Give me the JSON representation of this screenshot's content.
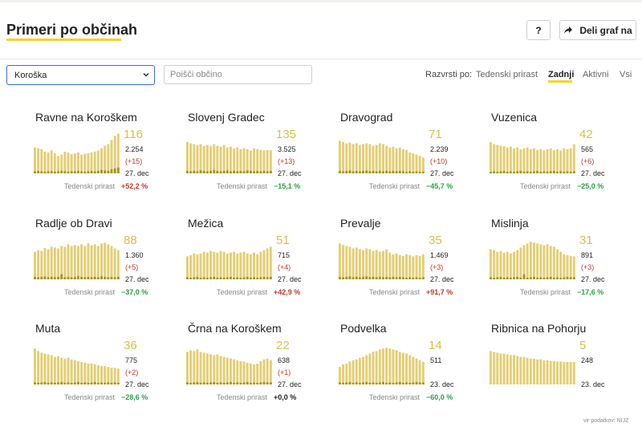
{
  "header": {
    "title": "Primeri po občinah",
    "help_label": "?",
    "share_label": "Deli graf na"
  },
  "filters": {
    "region_selected": "Koroška",
    "search_placeholder": "Poišči občino",
    "sort_label": "Razvrsti po:",
    "sort_options": [
      "Tedenski prirast",
      "Zadnji",
      "Aktivni",
      "Vsi"
    ],
    "sort_active": "Zadnji"
  },
  "colors": {
    "bar": "#e3cf75",
    "bar_dark": "#a89324",
    "accent_yellow": "#f5d327",
    "big_number": "#d8bf4a",
    "up": "#c0392b",
    "down": "#27a04a"
  },
  "growth_label": "Tedenski prirast",
  "municipalities": [
    {
      "name": "Ravne na Koroškem",
      "last": "116",
      "total": "2.254",
      "delta": "(+15)",
      "date": "27. dec",
      "growth": "+52,2 %",
      "trend": "up",
      "bars": [
        0.62,
        0.6,
        0.58,
        0.52,
        0.5,
        0.55,
        0.48,
        0.42,
        0.45,
        0.52,
        0.5,
        0.46,
        0.48,
        0.5,
        0.45,
        0.47,
        0.48,
        0.5,
        0.52,
        0.55,
        0.6,
        0.66,
        0.7,
        0.8,
        0.9,
        0.95
      ],
      "dark": [
        0.05,
        0.06,
        0.05,
        0.04,
        0.05,
        0.05,
        0.04,
        0.05,
        0.06,
        0.05,
        0.04,
        0.05,
        0.05,
        0.06,
        0.05,
        0.04,
        0.05,
        0.06,
        0.05,
        0.06,
        0.08,
        0.07,
        0.06,
        0.1,
        0.12,
        0.14
      ]
    },
    {
      "name": "Slovenj Gradec",
      "last": "135",
      "total": "3.525",
      "delta": "(+13)",
      "date": "27. dec",
      "growth": "−15,1 %",
      "trend": "down",
      "bars": [
        0.75,
        0.72,
        0.7,
        0.68,
        0.7,
        0.66,
        0.68,
        0.65,
        0.7,
        0.66,
        0.64,
        0.68,
        0.62,
        0.64,
        0.6,
        0.62,
        0.58,
        0.6,
        0.58,
        0.55,
        0.6,
        0.58,
        0.56,
        0.55,
        0.56,
        0.55
      ],
      "dark": [
        0.06,
        0.05,
        0.06,
        0.05,
        0.07,
        0.06,
        0.05,
        0.06,
        0.08,
        0.06,
        0.05,
        0.06,
        0.07,
        0.05,
        0.06,
        0.05,
        0.06,
        0.05,
        0.07,
        0.06,
        0.05,
        0.06,
        0.05,
        0.06,
        0.05,
        0.06
      ]
    },
    {
      "name": "Dravograd",
      "last": "71",
      "total": "2.239",
      "delta": "(+10)",
      "date": "27. dec",
      "growth": "−45,7 %",
      "trend": "down",
      "bars": [
        0.78,
        0.75,
        0.72,
        0.74,
        0.7,
        0.72,
        0.68,
        0.7,
        0.72,
        0.7,
        0.66,
        0.68,
        0.72,
        0.7,
        0.66,
        0.62,
        0.64,
        0.6,
        0.62,
        0.58,
        0.56,
        0.5,
        0.48,
        0.45,
        0.42,
        0.38
      ],
      "dark": [
        0.06,
        0.05,
        0.06,
        0.07,
        0.05,
        0.06,
        0.05,
        0.06,
        0.07,
        0.05,
        0.06,
        0.05,
        0.06,
        0.05,
        0.06,
        0.05,
        0.06,
        0.05,
        0.06,
        0.05,
        0.04,
        0.05,
        0.04,
        0.05,
        0.04,
        0.04
      ]
    },
    {
      "name": "Vuzenica",
      "last": "42",
      "total": "565",
      "delta": "(+6)",
      "date": "27. dec",
      "growth": "−25,0 %",
      "trend": "down",
      "bars": [
        0.75,
        0.7,
        0.68,
        0.66,
        0.65,
        0.62,
        0.64,
        0.6,
        0.62,
        0.58,
        0.6,
        0.62,
        0.58,
        0.6,
        0.56,
        0.58,
        0.55,
        0.58,
        0.6,
        0.56,
        0.58,
        0.55,
        0.6,
        0.58,
        0.6,
        0.7
      ],
      "dark": [
        0.04,
        0.05,
        0.04,
        0.05,
        0.06,
        0.04,
        0.05,
        0.04,
        0.05,
        0.06,
        0.04,
        0.05,
        0.04,
        0.05,
        0.06,
        0.04,
        0.05,
        0.04,
        0.05,
        0.06,
        0.04,
        0.05,
        0.04,
        0.05,
        0.04,
        0.05
      ]
    },
    {
      "name": "Radlje ob Dravi",
      "last": "88",
      "total": "1.360",
      "delta": "(+5)",
      "date": "27. dec",
      "growth": "−37,0 %",
      "trend": "down",
      "bars": [
        0.66,
        0.7,
        0.68,
        0.75,
        0.72,
        0.78,
        0.76,
        0.74,
        0.8,
        0.78,
        0.84,
        0.8,
        0.82,
        0.8,
        0.84,
        0.8,
        0.86,
        0.82,
        0.84,
        0.8,
        0.86,
        0.88,
        0.84,
        0.8,
        0.74,
        0.7
      ],
      "dark": [
        0.06,
        0.05,
        0.06,
        0.07,
        0.05,
        0.06,
        0.05,
        0.06,
        0.12,
        0.05,
        0.06,
        0.05,
        0.06,
        0.08,
        0.06,
        0.05,
        0.06,
        0.05,
        0.06,
        0.05,
        0.07,
        0.06,
        0.05,
        0.06,
        0.05,
        0.06
      ]
    },
    {
      "name": "Mežica",
      "last": "51",
      "total": "715",
      "delta": "(+4)",
      "date": "27. dec",
      "growth": "+42,9 %",
      "trend": "up",
      "bars": [
        0.55,
        0.58,
        0.62,
        0.6,
        0.62,
        0.66,
        0.64,
        0.68,
        0.66,
        0.64,
        0.68,
        0.66,
        0.62,
        0.64,
        0.66,
        0.62,
        0.64,
        0.66,
        0.62,
        0.6,
        0.64,
        0.6,
        0.66,
        0.7,
        0.74,
        0.78
      ],
      "dark": [
        0.05,
        0.04,
        0.05,
        0.06,
        0.04,
        0.05,
        0.04,
        0.05,
        0.06,
        0.04,
        0.05,
        0.04,
        0.05,
        0.06,
        0.04,
        0.05,
        0.04,
        0.05,
        0.06,
        0.04,
        0.05,
        0.04,
        0.05,
        0.06,
        0.05,
        0.06
      ]
    },
    {
      "name": "Prevalje",
      "last": "35",
      "total": "1.469",
      "delta": "(+3)",
      "date": "27. dec",
      "growth": "+91,7 %",
      "trend": "up",
      "bars": [
        0.86,
        0.82,
        0.8,
        0.78,
        0.74,
        0.76,
        0.72,
        0.7,
        0.74,
        0.72,
        0.68,
        0.7,
        0.66,
        0.68,
        0.72,
        0.64,
        0.6,
        0.62,
        0.58,
        0.56,
        0.6,
        0.58,
        0.55,
        0.58,
        0.56,
        0.6
      ],
      "dark": [
        0.06,
        0.05,
        0.06,
        0.07,
        0.05,
        0.06,
        0.05,
        0.06,
        0.07,
        0.05,
        0.06,
        0.05,
        0.06,
        0.05,
        0.06,
        0.05,
        0.06,
        0.05,
        0.06,
        0.05,
        0.04,
        0.05,
        0.04,
        0.05,
        0.04,
        0.05
      ]
    },
    {
      "name": "Mislinja",
      "last": "31",
      "total": "891",
      "delta": "(+3)",
      "date": "27. dec",
      "growth": "−17,6 %",
      "trend": "down",
      "bars": [
        0.72,
        0.7,
        0.66,
        0.68,
        0.64,
        0.66,
        0.62,
        0.66,
        0.7,
        0.76,
        0.82,
        0.86,
        0.9,
        0.88,
        0.86,
        0.84,
        0.82,
        0.84,
        0.8,
        0.78,
        0.72,
        0.66,
        0.6,
        0.58,
        0.56,
        0.55
      ],
      "dark": [
        0.05,
        0.04,
        0.05,
        0.06,
        0.04,
        0.05,
        0.04,
        0.05,
        0.06,
        0.04,
        0.12,
        0.04,
        0.05,
        0.06,
        0.04,
        0.05,
        0.04,
        0.05,
        0.06,
        0.04,
        0.05,
        0.04,
        0.05,
        0.06,
        0.05,
        0.05
      ]
    },
    {
      "name": "Muta",
      "last": "36",
      "total": "775",
      "delta": "(+2)",
      "date": "27. dec",
      "growth": "−28,6 %",
      "trend": "down",
      "bars": [
        0.86,
        0.8,
        0.76,
        0.74,
        0.72,
        0.7,
        0.66,
        0.68,
        0.64,
        0.62,
        0.64,
        0.6,
        0.58,
        0.56,
        0.54,
        0.52,
        0.5,
        0.5,
        0.48,
        0.46,
        0.44,
        0.44,
        0.42,
        0.4,
        0.4,
        0.38
      ],
      "dark": [
        0.05,
        0.04,
        0.05,
        0.06,
        0.04,
        0.05,
        0.04,
        0.05,
        0.06,
        0.04,
        0.05,
        0.04,
        0.05,
        0.06,
        0.04,
        0.05,
        0.04,
        0.05,
        0.06,
        0.04,
        0.05,
        0.04,
        0.05,
        0.04,
        0.05,
        0.04
      ]
    },
    {
      "name": "Črna na Koroškem",
      "last": "22",
      "total": "638",
      "delta": "(+1)",
      "date": "27. dec",
      "growth": "+0,0 %",
      "trend": "zero",
      "bars": [
        0.78,
        0.82,
        0.8,
        0.84,
        0.78,
        0.76,
        0.74,
        0.72,
        0.7,
        0.72,
        0.68,
        0.66,
        0.64,
        0.62,
        0.6,
        0.58,
        0.56,
        0.55,
        0.52,
        0.5,
        0.48,
        0.5,
        0.56,
        0.6,
        0.62,
        0.58
      ],
      "dark": [
        0.05,
        0.04,
        0.05,
        0.06,
        0.04,
        0.05,
        0.04,
        0.05,
        0.06,
        0.04,
        0.05,
        0.04,
        0.05,
        0.06,
        0.04,
        0.05,
        0.04,
        0.05,
        0.06,
        0.04,
        0.05,
        0.04,
        0.05,
        0.06,
        0.05,
        0.05
      ]
    },
    {
      "name": "Podvelka",
      "last": "14",
      "total": "511",
      "delta": "",
      "date": "23. dec",
      "growth": "−60,0 %",
      "trend": "down",
      "bars": [
        0.42,
        0.48,
        0.5,
        0.55,
        0.58,
        0.6,
        0.64,
        0.66,
        0.7,
        0.74,
        0.78,
        0.8,
        0.84,
        0.86,
        0.88,
        0.86,
        0.84,
        0.82,
        0.78,
        0.76,
        0.74,
        0.7,
        0.66,
        0.62,
        0.58,
        0.54
      ],
      "dark": [
        0.05,
        0.04,
        0.05,
        0.06,
        0.04,
        0.05,
        0.04,
        0.05,
        0.06,
        0.04,
        0.05,
        0.04,
        0.05,
        0.06,
        0.04,
        0.05,
        0.04,
        0.05,
        0.06,
        0.04,
        0.05,
        0.04,
        0.05,
        0.06,
        0.05,
        0.05
      ]
    },
    {
      "name": "Ribnica na Pohorju",
      "last": "5",
      "total": "248",
      "delta": "",
      "date": "23. dec",
      "growth": "",
      "trend": "zero",
      "bars": [
        0.8,
        0.78,
        0.76,
        0.74,
        0.74,
        0.72,
        0.7,
        0.7,
        0.68,
        0.66,
        0.66,
        0.64,
        0.62,
        0.62,
        0.6,
        0.6,
        0.58,
        0.58,
        0.56,
        0.56,
        0.55,
        0.55,
        0.54,
        0.54,
        0.54,
        0.54
      ],
      "dark": [
        0,
        0,
        0,
        0,
        0,
        0,
        0,
        0,
        0,
        0,
        0,
        0,
        0,
        0,
        0,
        0,
        0,
        0,
        0,
        0,
        0,
        0,
        0,
        0,
        0,
        0
      ]
    }
  ],
  "footer": {
    "note": "vir podatkov: NIJZ"
  }
}
